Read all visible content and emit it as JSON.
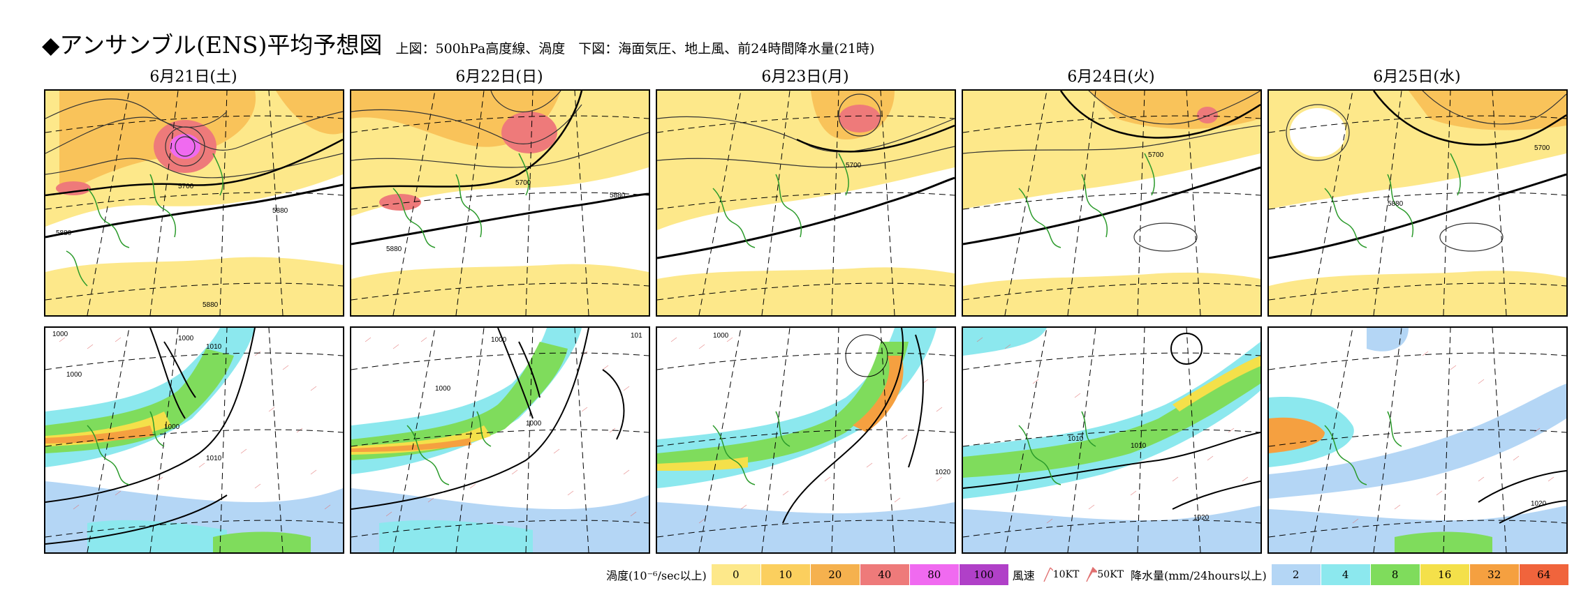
{
  "title": {
    "main": "◆アンサンブル(ENS)平均予想図",
    "sub": "上図：500hPa高度線、渦度　下図：海面気圧、地上風、前24時間降水量(21時)"
  },
  "dates": [
    "6月21日(土)",
    "6月22日(日)",
    "6月23日(月)",
    "6月24日(火)",
    "6月25日(水)"
  ],
  "upper_labels": {
    "p0": [
      "5700",
      "5880",
      "5880",
      "5880"
    ],
    "p1": [
      "5700",
      "5880",
      "5880"
    ],
    "p2": [
      "5700"
    ],
    "p3": [
      "5700"
    ],
    "p4": [
      "5700",
      "5880"
    ]
  },
  "lower_labels": {
    "p0": [
      "1000",
      "1000",
      "1000",
      "1010",
      "1000",
      "1010"
    ],
    "p1": [
      "1000",
      "1000",
      "1000",
      "101"
    ],
    "p2": [
      "1000",
      "1020"
    ],
    "p3": [
      "1010",
      "1010",
      "1020"
    ],
    "p4": [
      "1020"
    ]
  },
  "legend": {
    "vorticity_label": "渦度(10⁻⁶/sec以上)",
    "vorticity_values": [
      "0",
      "10",
      "20",
      "40",
      "80",
      "100"
    ],
    "vorticity_colors": [
      "#fde88a",
      "#fbcf5e",
      "#f5b14e",
      "#ee7a7a",
      "#f06af0",
      "#b040c8"
    ],
    "wind_label": "風速",
    "wind_10": "10KT",
    "wind_50": "50KT",
    "precip_label": "降水量(mm/24hours以上)",
    "precip_values": [
      "2",
      "4",
      "8",
      "16",
      "32",
      "64"
    ],
    "precip_colors": [
      "#b4d6f5",
      "#8ce8ee",
      "#7fdc5c",
      "#f4e04a",
      "#f5a040",
      "#f0643c"
    ]
  }
}
